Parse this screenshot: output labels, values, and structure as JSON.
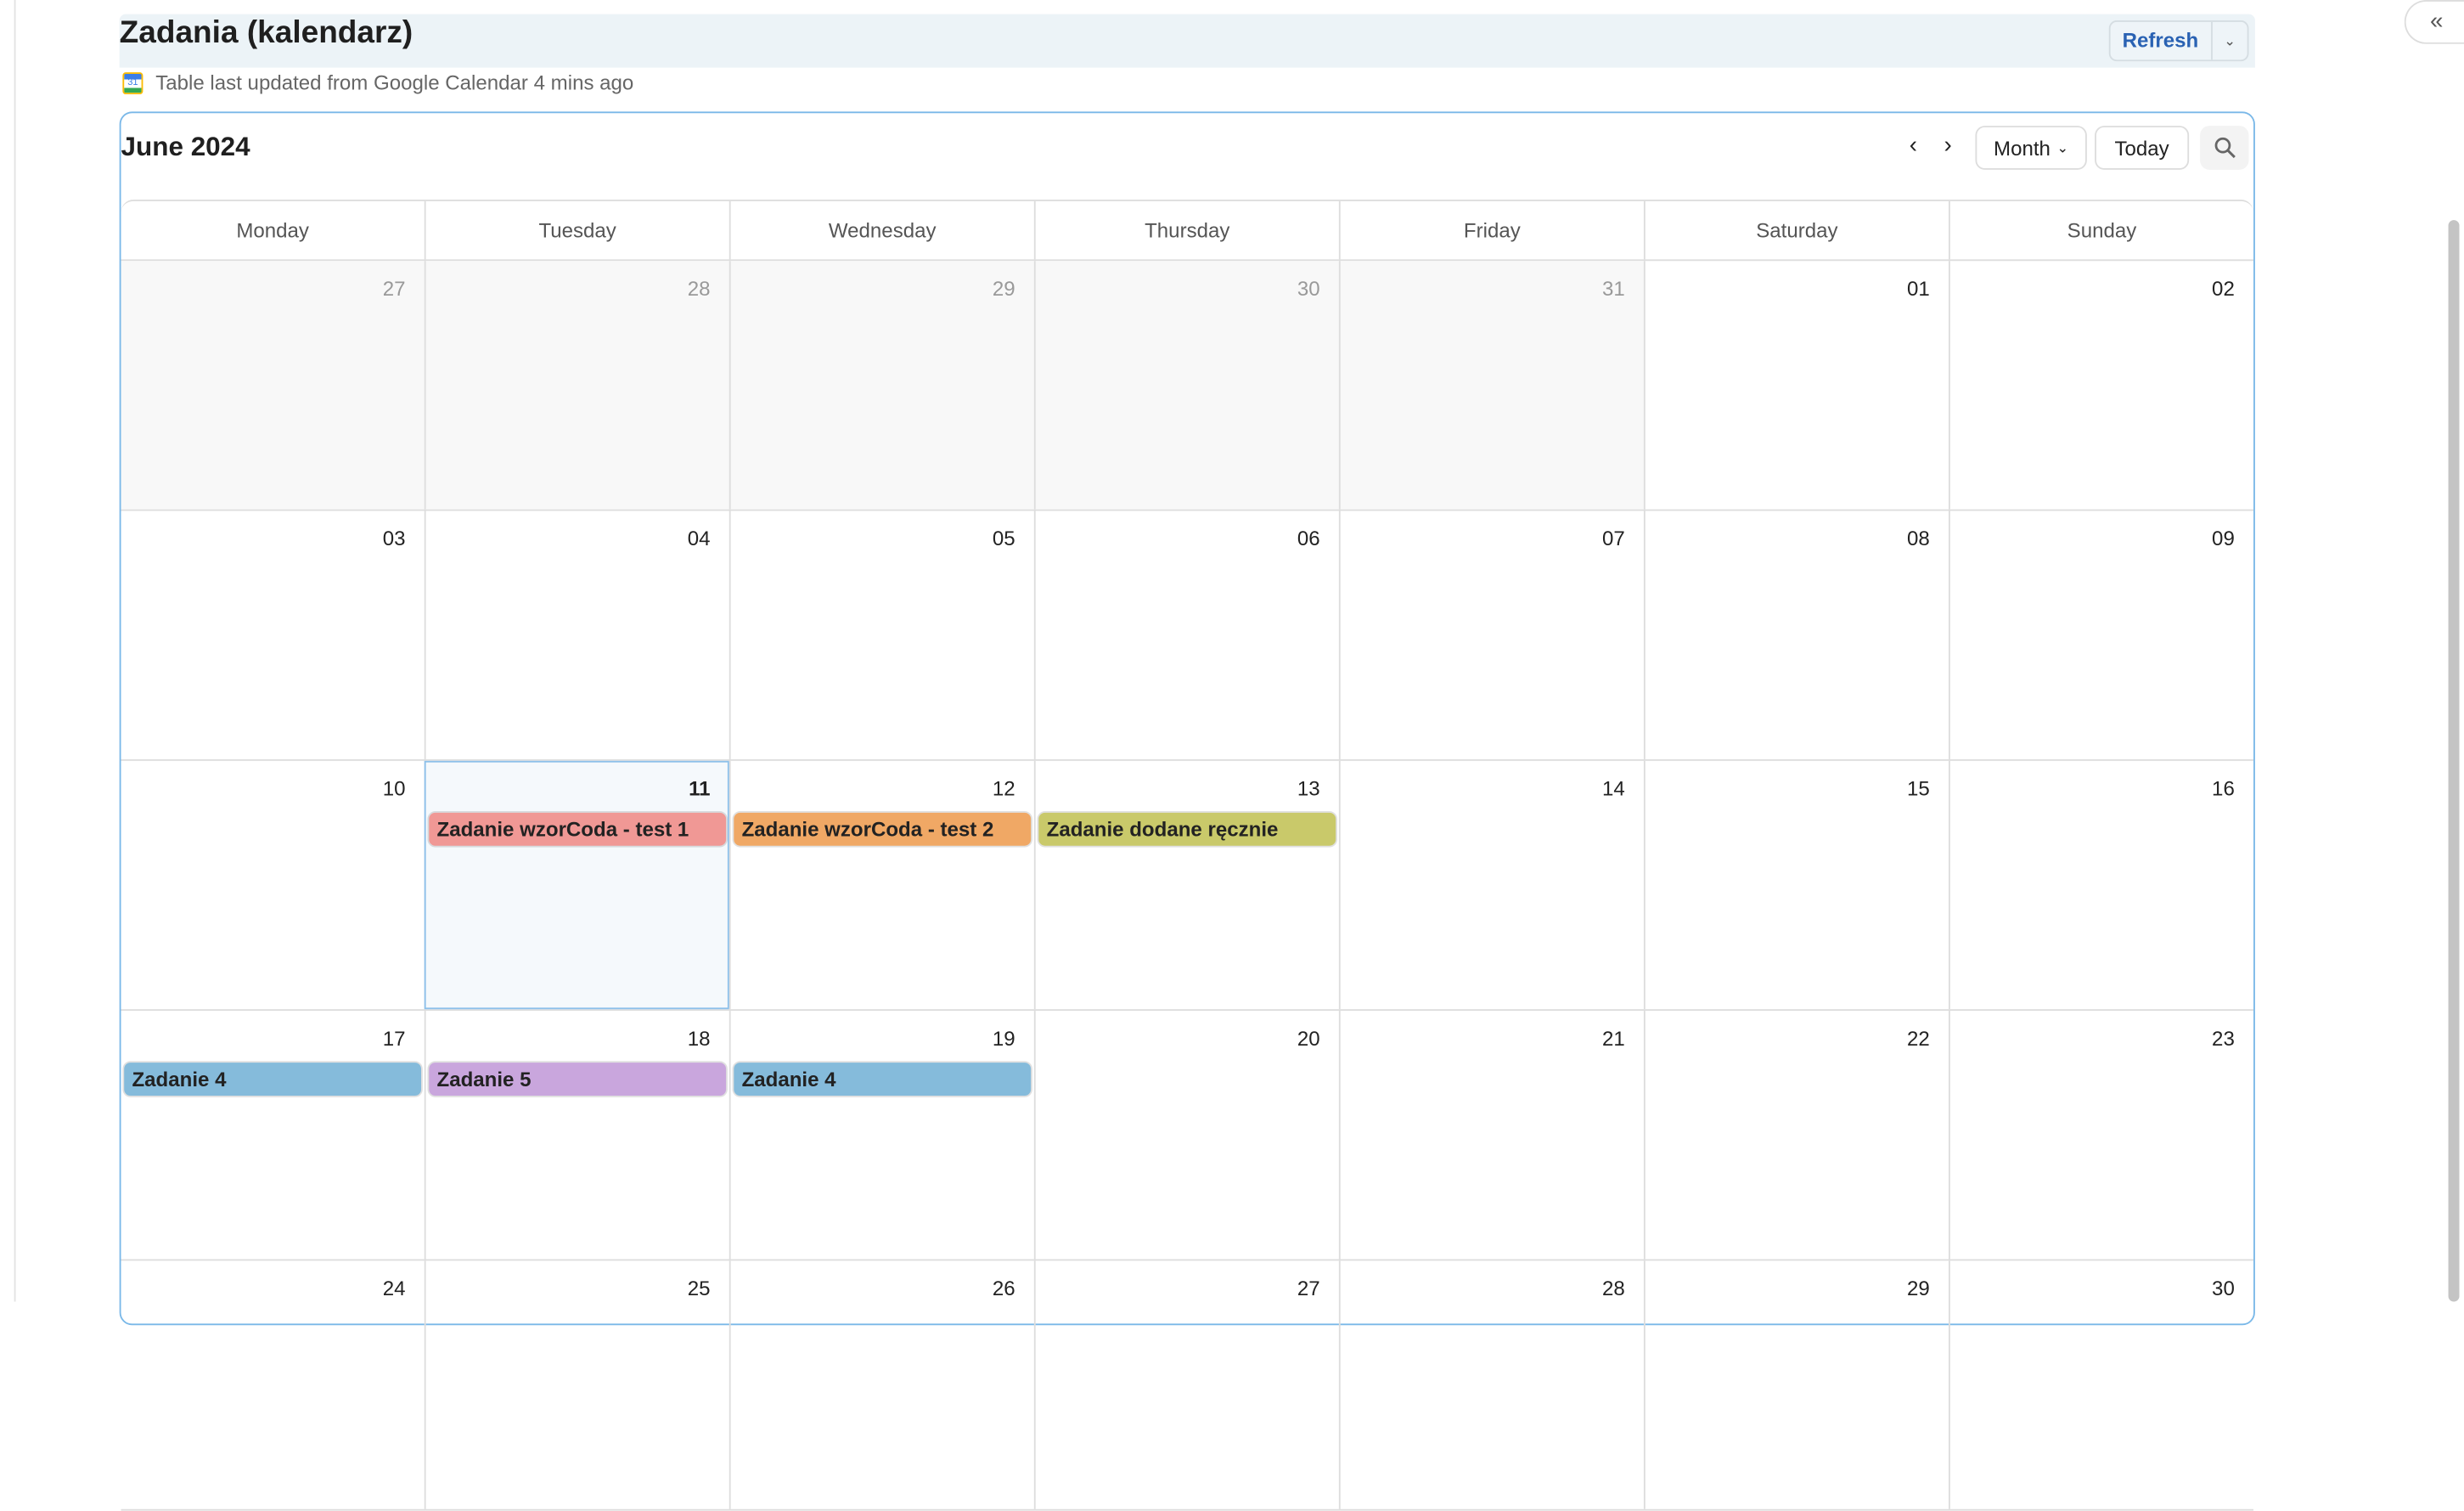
{
  "header": {
    "title": "Zadania (kalendarz)",
    "refresh_label": "Refresh",
    "status": "Table last updated from Google Calendar 4 mins ago",
    "gcal_icon_text": "31"
  },
  "calendar": {
    "month_label": "June 2024",
    "view_label": "Month",
    "today_label": "Today",
    "weekdays": [
      "Monday",
      "Tuesday",
      "Wednesday",
      "Thursday",
      "Friday",
      "Saturday",
      "Sunday"
    ],
    "weeks": [
      [
        {
          "d": "27",
          "other": true
        },
        {
          "d": "28",
          "other": true
        },
        {
          "d": "29",
          "other": true
        },
        {
          "d": "30",
          "other": true
        },
        {
          "d": "31",
          "other": true
        },
        {
          "d": "01"
        },
        {
          "d": "02"
        }
      ],
      [
        {
          "d": "03"
        },
        {
          "d": "04"
        },
        {
          "d": "05"
        },
        {
          "d": "06"
        },
        {
          "d": "07"
        },
        {
          "d": "08"
        },
        {
          "d": "09"
        }
      ],
      [
        {
          "d": "10"
        },
        {
          "d": "11",
          "today": true,
          "event": {
            "title": "Zadanie wzorCoda - test 1",
            "color": "#f09895"
          }
        },
        {
          "d": "12",
          "event": {
            "title": "Zadanie wzorCoda - test 2",
            "color": "#f0a865"
          }
        },
        {
          "d": "13",
          "event": {
            "title": "Zadanie dodane ręcznie",
            "color": "#c9c96a"
          }
        },
        {
          "d": "14"
        },
        {
          "d": "15"
        },
        {
          "d": "16"
        }
      ],
      [
        {
          "d": "17",
          "event": {
            "title": "Zadanie 4",
            "color": "#85bbdb"
          }
        },
        {
          "d": "18",
          "event": {
            "title": "Zadanie 5",
            "color": "#c9a6dd"
          }
        },
        {
          "d": "19",
          "event": {
            "title": "Zadanie 4",
            "color": "#85bbdb"
          }
        },
        {
          "d": "20"
        },
        {
          "d": "21"
        },
        {
          "d": "22"
        },
        {
          "d": "23"
        }
      ],
      [
        {
          "d": "24"
        },
        {
          "d": "25"
        },
        {
          "d": "26"
        },
        {
          "d": "27"
        },
        {
          "d": "28"
        },
        {
          "d": "29"
        },
        {
          "d": "30"
        }
      ]
    ]
  }
}
